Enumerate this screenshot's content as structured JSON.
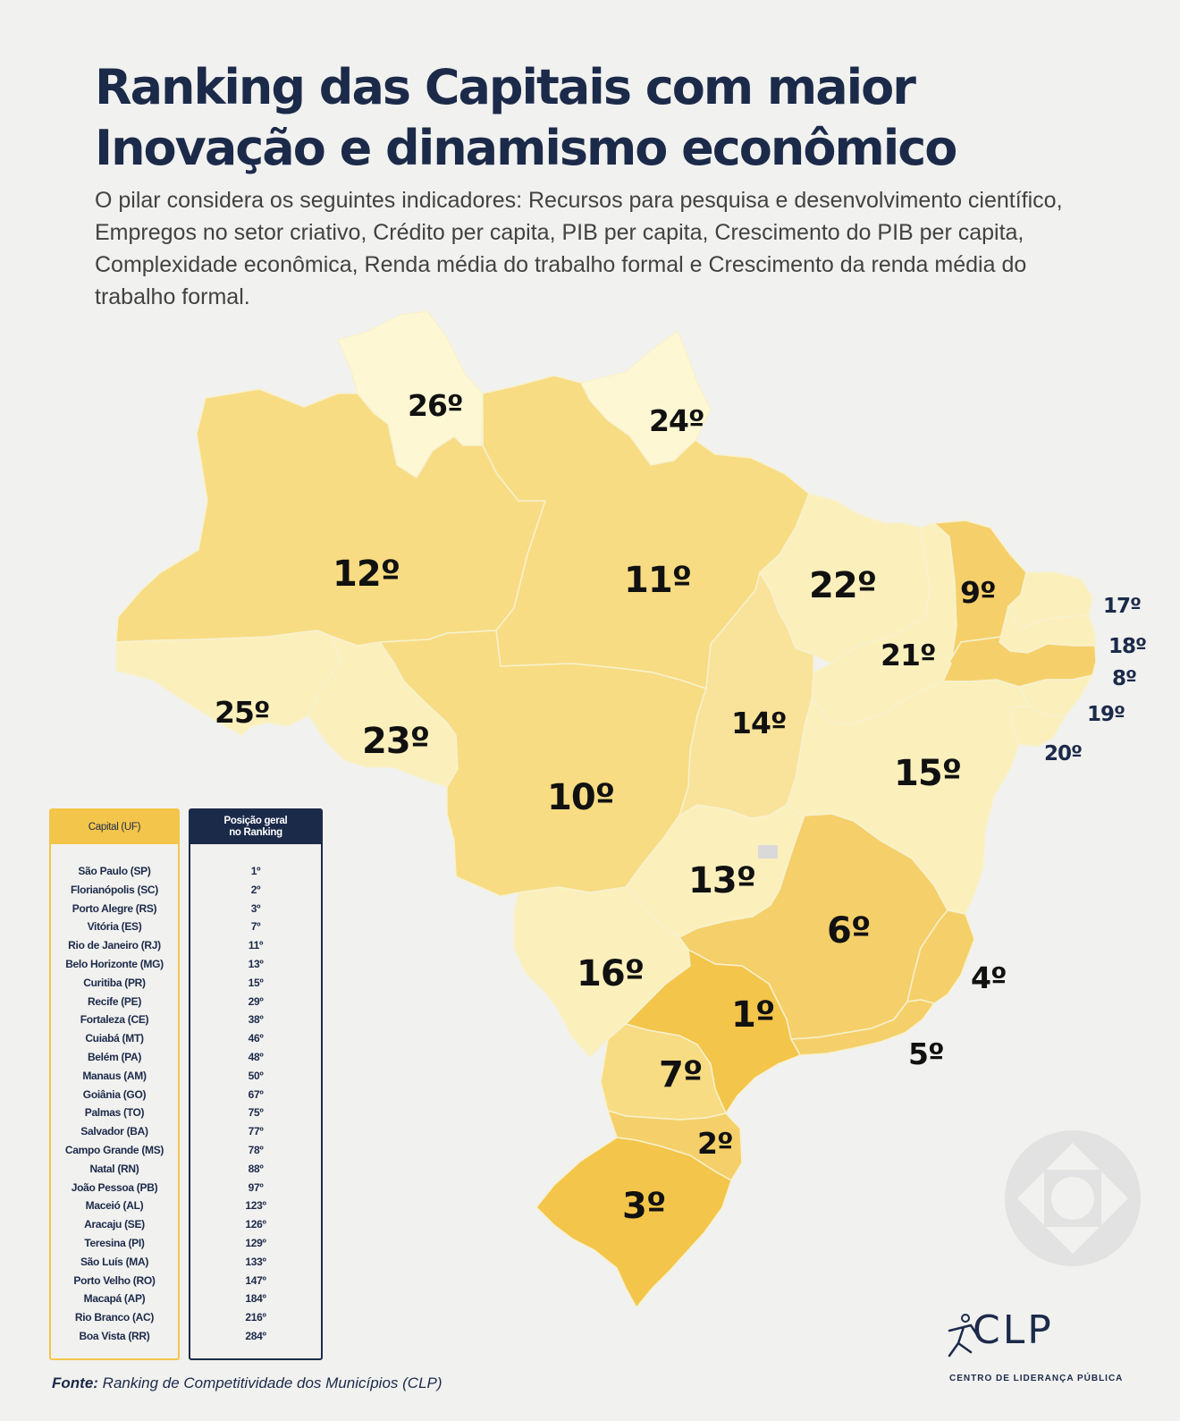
{
  "header": {
    "title": "Ranking das Capitais com maior Inovação e dinamismo econômico",
    "subtitle": "O pilar considera os seguintes indicadores: Recursos para pesquisa e desenvolvimento científico, Empregos no setor criativo, Crédito per capita, PIB per capita, Crescimento do PIB per capita, Complexidade econômica, Renda média do trabalho formal e Crescimento da renda média do trabalho formal."
  },
  "map_labels": {
    "RR": "26º",
    "AP": "24º",
    "AM": "12º",
    "PA": "11º",
    "MA": "22º",
    "CE": "9º",
    "PI": "21º",
    "RN": "17º",
    "PB": "18º",
    "PE": "8º",
    "AL": "19º",
    "SE": "20º",
    "AC": "25º",
    "RO": "23º",
    "TO": "14º",
    "BA": "15º",
    "MT": "10º",
    "GO": "13º",
    "MG": "6º",
    "ES": "4º",
    "RJ": "5º",
    "MS": "16º",
    "SP": "1º",
    "PR": "7º",
    "SC": "2º",
    "RS": "3º"
  },
  "colors": {
    "lightest": "#fdf7d4",
    "light": "#fbf0bc",
    "medium_light": "#f9e39a",
    "medium": "#f7dc83",
    "strong": "#f5d06a",
    "strongest": "#f3c54a",
    "navy": "#1c2a4a"
  },
  "table": {
    "col_capital": "Capital (UF)",
    "col_position": "Posição geral no Ranking",
    "rows": [
      {
        "capital": "São Paulo (SP)",
        "pos": "1º"
      },
      {
        "capital": "Florianópolis (SC)",
        "pos": "2º"
      },
      {
        "capital": "Porto Alegre (RS)",
        "pos": "3º"
      },
      {
        "capital": "Vitória (ES)",
        "pos": "7º"
      },
      {
        "capital": "Rio de Janeiro (RJ)",
        "pos": "11º"
      },
      {
        "capital": "Belo Horizonte (MG)",
        "pos": "13º"
      },
      {
        "capital": "Curitiba (PR)",
        "pos": "15º"
      },
      {
        "capital": "Recife (PE)",
        "pos": "29º"
      },
      {
        "capital": "Fortaleza (CE)",
        "pos": "38º"
      },
      {
        "capital": "Cuiabá (MT)",
        "pos": "46º"
      },
      {
        "capital": "Belém (PA)",
        "pos": "48º"
      },
      {
        "capital": "Manaus (AM)",
        "pos": "50º"
      },
      {
        "capital": "Goiânia (GO)",
        "pos": "67º"
      },
      {
        "capital": "Palmas (TO)",
        "pos": "75º"
      },
      {
        "capital": "Salvador (BA)",
        "pos": "77º"
      },
      {
        "capital": "Campo Grande (MS)",
        "pos": "78º"
      },
      {
        "capital": "Natal (RN)",
        "pos": "88º"
      },
      {
        "capital": "João Pessoa (PB)",
        "pos": "97º"
      },
      {
        "capital": "Maceió (AL)",
        "pos": "123º"
      },
      {
        "capital": "Aracaju (SE)",
        "pos": "126º"
      },
      {
        "capital": "Teresina (PI)",
        "pos": "129º"
      },
      {
        "capital": "São Luís (MA)",
        "pos": "133º"
      },
      {
        "capital": "Porto Velho (RO)",
        "pos": "147º"
      },
      {
        "capital": "Macapá (AP)",
        "pos": "184º"
      },
      {
        "capital": "Rio Branco (AC)",
        "pos": "216º"
      },
      {
        "capital": "Boa Vista (RR)",
        "pos": "284º"
      }
    ]
  },
  "footer": {
    "source_label": "Fonte:",
    "source_text": "Ranking de Competitividade dos Municípios (CLP)"
  },
  "logo": {
    "name": "CLP",
    "subtitle": "CENTRO DE LIDERANÇA PÚBLICA"
  }
}
